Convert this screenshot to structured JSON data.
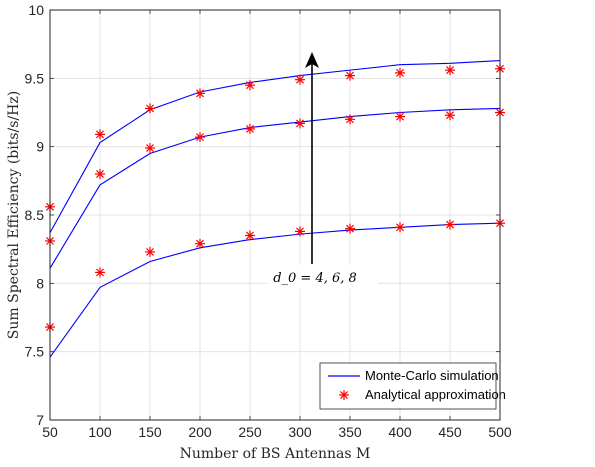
{
  "chart_data": {
    "type": "line",
    "xlabel": "Number of BS Antennas M",
    "ylabel": "Sum Spectral Efficiency (bits/s/Hz)",
    "xlim": [
      50,
      500
    ],
    "ylim": [
      7,
      10
    ],
    "xticks": [
      "50",
      "100",
      "150",
      "200",
      "250",
      "300",
      "350",
      "400",
      "450",
      "500"
    ],
    "yticks": [
      "7",
      "7.5",
      "8",
      "8.5",
      "9",
      "9.5",
      "10"
    ],
    "grid": true,
    "legend_position": "bottom-right",
    "annotation": "d_0 = 4, 6, 8",
    "x": [
      50,
      100,
      150,
      200,
      250,
      300,
      350,
      400,
      450,
      500
    ],
    "series": [
      {
        "name": "Monte-Carlo simulation",
        "group": "d0=8",
        "style": "line",
        "color": "#0000ff",
        "values": [
          8.37,
          9.03,
          9.27,
          9.4,
          9.47,
          9.52,
          9.56,
          9.6,
          9.61,
          9.63
        ]
      },
      {
        "name": "Analytical approximation",
        "group": "d0=8",
        "style": "marker",
        "color": "#ff0000",
        "values": [
          8.56,
          9.09,
          9.28,
          9.39,
          9.45,
          9.49,
          9.52,
          9.54,
          9.56,
          9.57
        ]
      },
      {
        "name": "Monte-Carlo simulation",
        "group": "d0=6",
        "style": "line",
        "color": "#0000ff",
        "values": [
          8.11,
          8.72,
          8.95,
          9.07,
          9.14,
          9.18,
          9.22,
          9.25,
          9.27,
          9.28
        ]
      },
      {
        "name": "Analytical approximation",
        "group": "d0=6",
        "style": "marker",
        "color": "#ff0000",
        "values": [
          8.31,
          8.8,
          8.99,
          9.07,
          9.13,
          9.17,
          9.2,
          9.22,
          9.23,
          9.25
        ]
      },
      {
        "name": "Monte-Carlo simulation",
        "group": "d0=4",
        "style": "line",
        "color": "#0000ff",
        "values": [
          7.46,
          7.97,
          8.16,
          8.26,
          8.32,
          8.36,
          8.39,
          8.41,
          8.43,
          8.44
        ]
      },
      {
        "name": "Analytical approximation",
        "group": "d0=4",
        "style": "marker",
        "color": "#ff0000",
        "values": [
          7.68,
          8.08,
          8.23,
          8.29,
          8.35,
          8.38,
          8.4,
          8.41,
          8.43,
          8.44
        ]
      }
    ],
    "legend": [
      {
        "label": "Monte-Carlo simulation",
        "style": "line",
        "color": "#0000ff"
      },
      {
        "label": "Analytical approximation",
        "style": "marker",
        "color": "#ff0000"
      }
    ]
  }
}
